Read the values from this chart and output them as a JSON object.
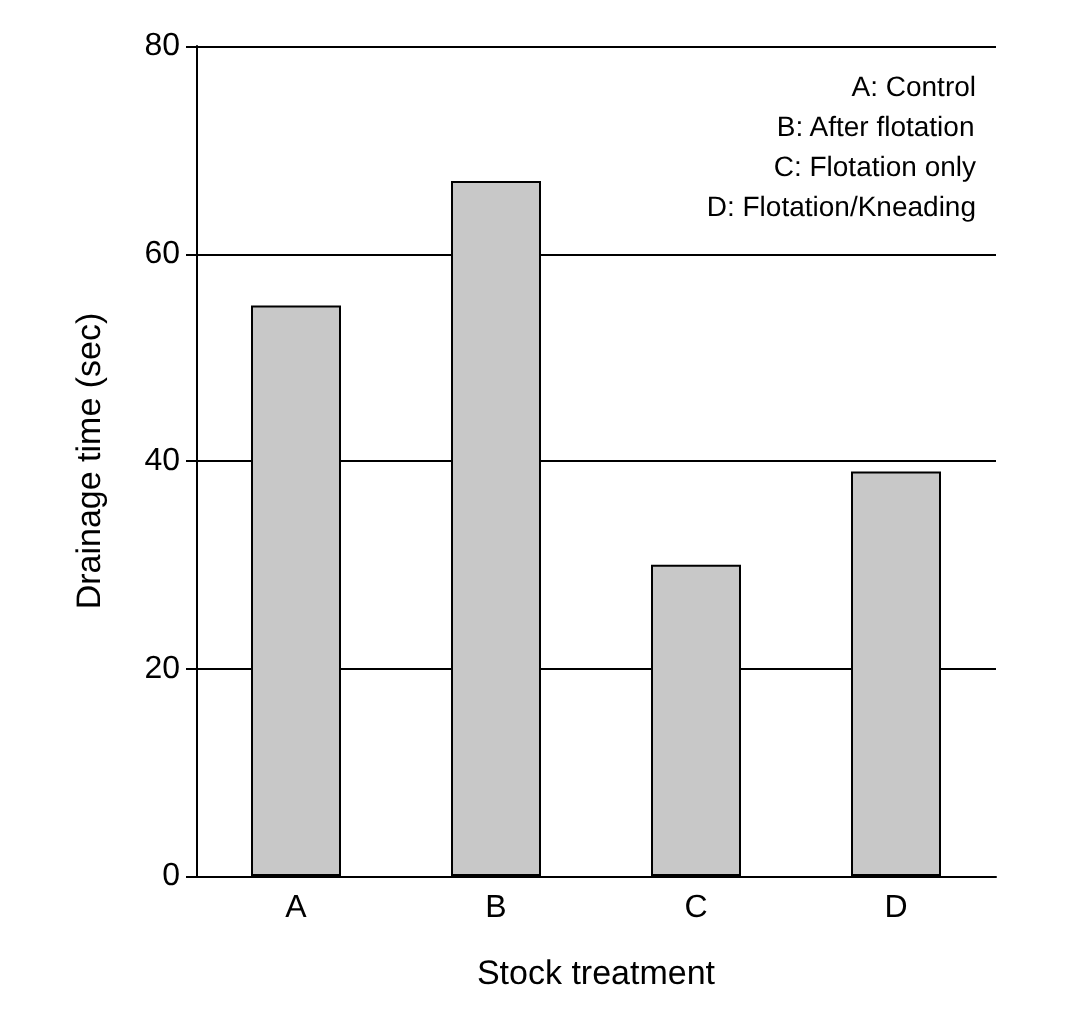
{
  "chart_data": {
    "type": "bar",
    "xlabel": "Stock treatment",
    "ylabel": "Drainage time (sec)",
    "categories": [
      "A",
      "B",
      "C",
      "D"
    ],
    "values": [
      55,
      67,
      30,
      39
    ],
    "color": "#c8c8c8",
    "ylim": [
      0,
      80
    ],
    "yticks": [
      0,
      20,
      40,
      60,
      80
    ],
    "grid": "y",
    "annotations": [
      "A: Control",
      "B: After flotation",
      "C: Flotation only",
      "D: Flotation/Kneading"
    ]
  }
}
